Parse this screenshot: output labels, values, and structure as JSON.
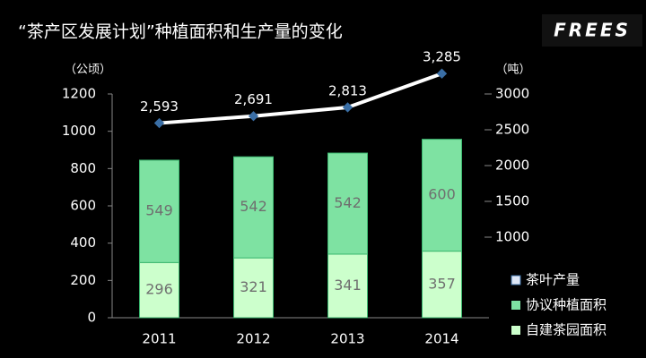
{
  "logo": "FREES",
  "chart_data": {
    "type": "bar-line",
    "title": "“茶产区发展计划”种植面积和生产量的变化",
    "y_label": "（公顷）",
    "y2_label": "（吨）",
    "categories": [
      "2011",
      "2012",
      "2013",
      "2014"
    ],
    "series": [
      {
        "name": "茶叶产量",
        "type": "line",
        "axis": "y2",
        "color": "#ffffff",
        "marker_color": "#3a6ea5",
        "values": [
          2593,
          2691,
          2813,
          3285
        ],
        "value_labels": [
          "2,593",
          "2,691",
          "2,813",
          "3,285"
        ]
      },
      {
        "name": "协议种植面积",
        "type": "bar",
        "color": "#7ee2a2",
        "values": [
          549,
          542,
          542,
          600
        ]
      },
      {
        "name": "自建茶园面积",
        "type": "bar",
        "color": "#ccffcc",
        "values": [
          296,
          321,
          341,
          357
        ]
      }
    ],
    "ylim": [
      0,
      1200
    ],
    "yticks": [
      0,
      200,
      400,
      600,
      800,
      1000,
      1200
    ],
    "y2lim": [
      -125,
      3000
    ],
    "y2ticks": [
      1000,
      1500,
      2000,
      2500,
      3000
    ]
  }
}
